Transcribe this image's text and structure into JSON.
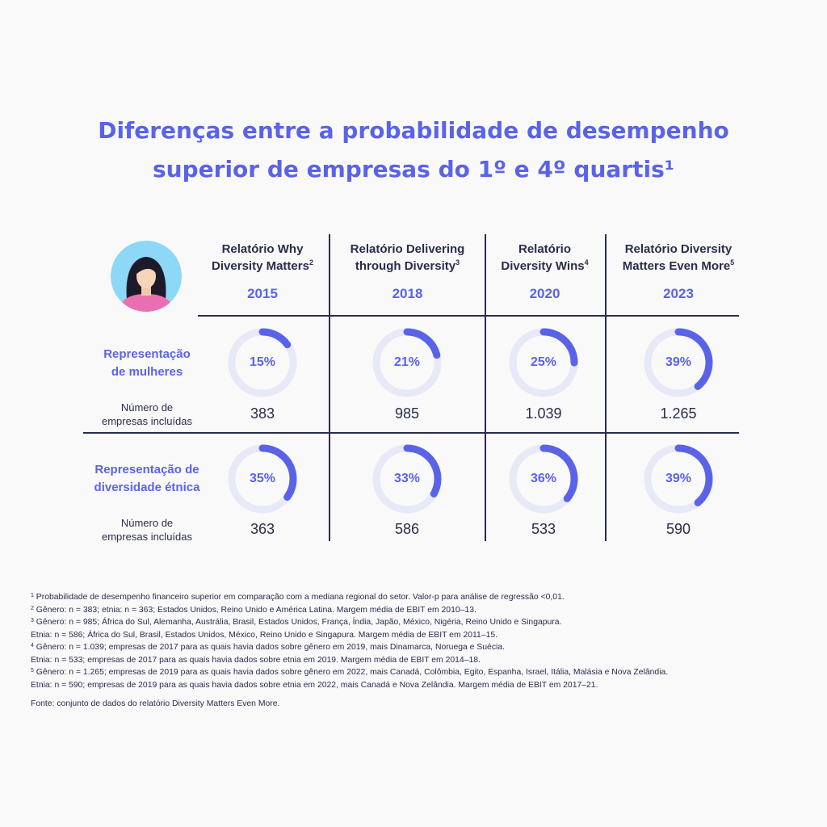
{
  "title": {
    "line1": "Diferenças entre a probabilidade de desempenho",
    "line2": "superior de empresas do 1º e 4º quartis¹"
  },
  "colors": {
    "accent": "#5a63e8",
    "ring_track": "#e8e9f7",
    "text": "#2a2d4a",
    "avatar_bg": "#8dd7f7",
    "avatar_shirt": "#ea6fb1"
  },
  "columns": [
    {
      "report_line1": "Relatório Why",
      "report_line2": "Diversity Matters",
      "sup": "2",
      "year": "2015"
    },
    {
      "report_line1": "Relatório Delivering",
      "report_line2": "through Diversity",
      "sup": "3",
      "year": "2018"
    },
    {
      "report_line1": "Relatório",
      "report_line2": "Diversity Wins",
      "sup": "4",
      "year": "2020"
    },
    {
      "report_line1": "Relatório Diversity",
      "report_line2": "Matters Even More",
      "sup": "5",
      "year": "2023"
    }
  ],
  "rows": [
    {
      "label_line1": "Representação",
      "label_line2": "de mulheres",
      "sub_line1": "Número de",
      "sub_line2": "empresas incluídas"
    },
    {
      "label_line1": "Representação de",
      "label_line2": "diversidade étnica",
      "sub_line1": "Número de",
      "sub_line2": "empresas incluídas"
    }
  ],
  "chart_data": {
    "type": "table",
    "series": [
      {
        "name": "Representação de mulheres",
        "values": [
          15,
          21,
          25,
          39
        ],
        "labels": [
          "15%",
          "21%",
          "25%",
          "39%"
        ],
        "companies": [
          "383",
          "985",
          "1.039",
          "1.265"
        ]
      },
      {
        "name": "Representação de diversidade étnica",
        "values": [
          35,
          33,
          36,
          39
        ],
        "labels": [
          "35%",
          "33%",
          "36%",
          "39%"
        ],
        "companies": [
          "363",
          "586",
          "533",
          "590"
        ]
      }
    ],
    "categories": [
      "2015",
      "2018",
      "2020",
      "2023"
    ]
  },
  "footnotes": [
    {
      "sup": "1",
      "text": "Probabilidade de desempenho financeiro superior em comparação com a mediana regional do setor. Valor-p para análise de regressão <0,01."
    },
    {
      "sup": "2",
      "text": "Gênero: n = 383; etnia: n = 363; Estados Unidos, Reino Unido e América Latina. Margem média de EBIT em 2010–13."
    },
    {
      "sup": "3",
      "text": "Gênero: n = 985; África do Sul, Alemanha, Austrália, Brasil, Estados Unidos, França, Índia, Japão, México, Nigéria, Reino Unido e Singapura."
    },
    {
      "sup": "",
      "text": "Etnia: n = 586; África do Sul, Brasil, Estados Unidos, México, Reino Unido e Singapura. Margem média de EBIT em 2011–15."
    },
    {
      "sup": "4",
      "text": "Gênero: n = 1.039; empresas de 2017 para as quais havia dados sobre gênero em 2019, mais Dinamarca, Noruega e Suécia."
    },
    {
      "sup": "",
      "text": "Etnia: n = 533; empresas de 2017 para as quais havia dados sobre etnia em 2019. Margem média de EBIT em 2014–18."
    },
    {
      "sup": "5",
      "text": "Gênero: n = 1.265; empresas de 2019 para as quais havia dados sobre gênero em 2022, mais Canadá, Colômbia, Egito, Espanha, Israel, Itália, Malásia e Nova Zelândia."
    },
    {
      "sup": "",
      "text": "Etnia: n = 590; empresas de 2019 para as quais havia dados sobre etnia em 2022, mais Canadá e Nova Zelândia. Margem média de EBIT em 2017–21."
    }
  ],
  "source": "Fonte: conjunto de dados do relatório Diversity Matters Even More."
}
